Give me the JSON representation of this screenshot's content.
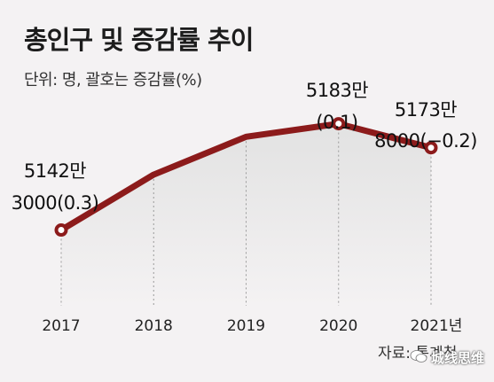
{
  "title": "총인구 및 증감률 추이",
  "subtitle": "단위: 명, 괄호는 증감률(%)",
  "source": "자료: 통계청",
  "watermark": "城线思维",
  "colors": {
    "line": "#8c1b1b",
    "area_top": "#e6e6e6",
    "background": "#f4f2f3"
  },
  "chart_data": {
    "type": "line",
    "title": "총인구 및 증감률 추이",
    "categories": [
      "2017",
      "2018",
      "2019",
      "2020",
      "2021년"
    ],
    "series": [
      {
        "values": [
          51423000,
          51635000,
          51780000,
          51830000,
          51738000
        ]
      }
    ],
    "growth_rate_pct": [
      0.3,
      null,
      null,
      0.1,
      -0.2
    ],
    "annotations": [
      {
        "x": "2017",
        "lines": [
          "5142만",
          "3000(0.3)"
        ]
      },
      {
        "x": "2020",
        "lines": [
          "5183만",
          "(0.1)"
        ]
      },
      {
        "x": "2021년",
        "lines": [
          "5173만",
          "8000(−0.2)"
        ]
      }
    ],
    "ylim": [
      51150000,
      52100000
    ],
    "markers_on": [
      "2017",
      "2020",
      "2021년"
    ],
    "grid": false
  }
}
